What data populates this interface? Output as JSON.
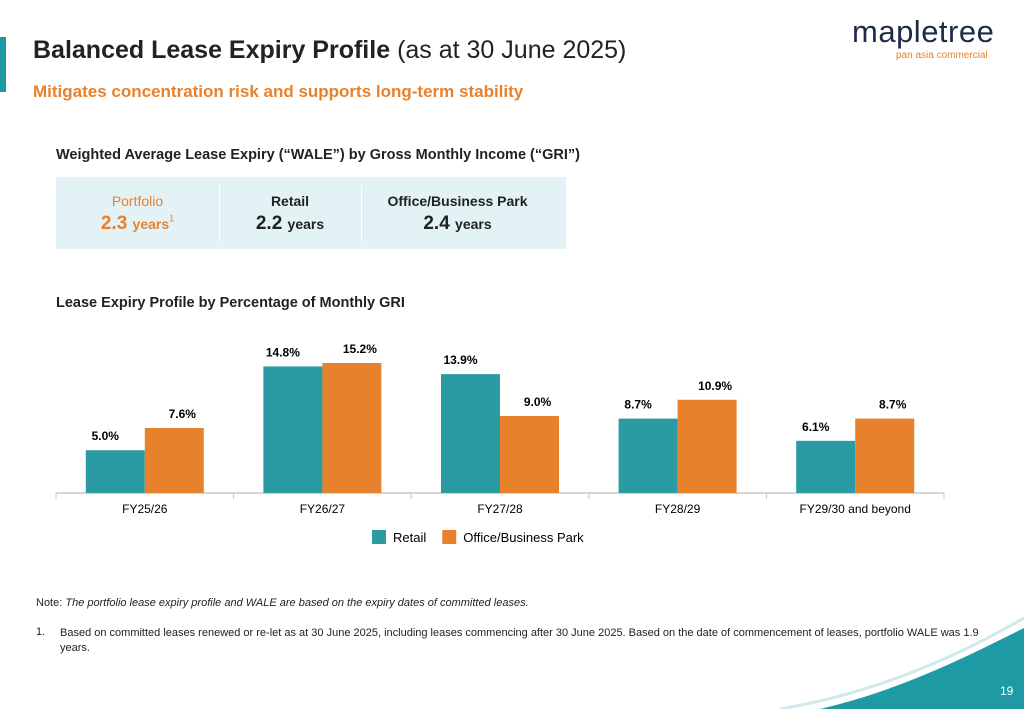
{
  "header": {
    "title": "Balanced Lease Expiry Profile",
    "title_suffix": "(as at 30 June 2025)",
    "subtitle": "Mitigates concentration risk and supports long-term stability",
    "logo": "mapletree",
    "logo_tagline": "pan asia commercial"
  },
  "wale": {
    "heading": "Weighted Average Lease Expiry (“WALE”) by Gross Monthly Income (“GRI”)",
    "items": [
      {
        "label": "Portfolio",
        "value": 2.3,
        "unit": "years",
        "footnote": "1"
      },
      {
        "label": "Retail",
        "value": 2.2,
        "unit": "years"
      },
      {
        "label": "Office/Business Park",
        "value": 2.4,
        "unit": "years"
      }
    ]
  },
  "chart_data": {
    "type": "bar",
    "title": "Lease Expiry Profile by Percentage of Monthly GRI",
    "categories": [
      "FY25/26",
      "FY26/27",
      "FY27/28",
      "FY28/29",
      "FY29/30 and beyond"
    ],
    "series": [
      {
        "name": "Retail",
        "color": "#2a9ba3",
        "values": [
          5.0,
          14.8,
          13.9,
          8.7,
          6.1
        ],
        "value_labels": [
          "5.0%",
          "14.8%",
          "13.9%",
          "8.7%",
          "6.1%"
        ]
      },
      {
        "name": "Office/Business Park",
        "color": "#e8812c",
        "values": [
          7.6,
          15.2,
          9.0,
          10.9,
          8.7
        ],
        "value_labels": [
          "7.6%",
          "15.2%",
          "9.0%",
          "10.9%",
          "8.7%"
        ]
      }
    ]
  },
  "notes": {
    "label": "Note:",
    "text": "The portfolio lease expiry profile and WALE are based on the expiry dates of committed leases.",
    "footnotes": [
      {
        "number": "1.",
        "text": "Based on committed leases renewed or re-let as at 30 June 2025, including leases commencing after 30 June 2025. Based on the date of commencement of leases, portfolio WALE was 1.9 years."
      }
    ]
  },
  "page_number": "19"
}
